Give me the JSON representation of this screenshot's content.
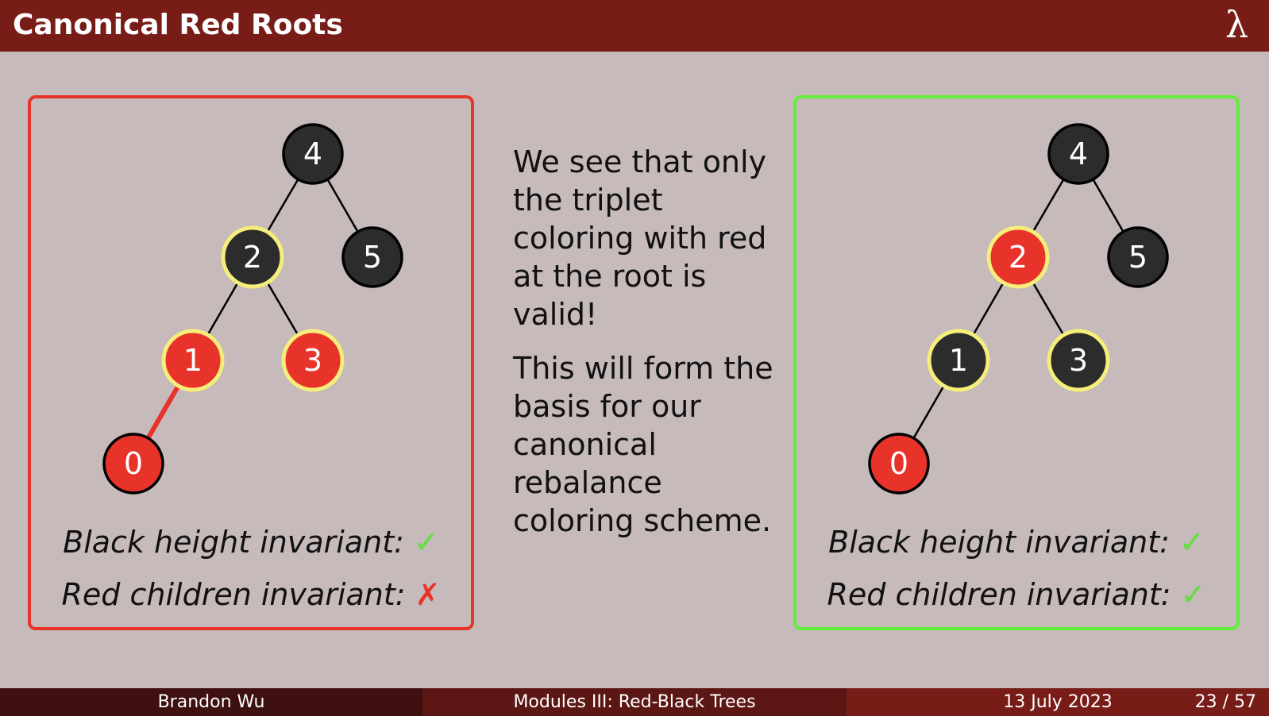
{
  "slide": {
    "title": "Canonical Red Roots",
    "logo": "λ"
  },
  "colors": {
    "header": "#781c18",
    "background": "#c6baba",
    "red_node": "#e8332b",
    "black_node": "#2c2c2c",
    "highlight_ring": "#f6ee7a",
    "invalid_border": "#e8332b",
    "valid_border": "#62ee3a"
  },
  "left_panel": {
    "status": "invalid",
    "nodes": [
      {
        "key": "4",
        "color": "black",
        "highlight": false
      },
      {
        "key": "2",
        "color": "black",
        "highlight": true
      },
      {
        "key": "5",
        "color": "black",
        "highlight": false
      },
      {
        "key": "1",
        "color": "red",
        "highlight": true
      },
      {
        "key": "3",
        "color": "red",
        "highlight": true
      },
      {
        "key": "0",
        "color": "red",
        "highlight": false
      }
    ],
    "edges": [
      {
        "from": "4",
        "to": "2",
        "violation": false
      },
      {
        "from": "4",
        "to": "5",
        "violation": false
      },
      {
        "from": "2",
        "to": "1",
        "violation": false
      },
      {
        "from": "2",
        "to": "3",
        "violation": false
      },
      {
        "from": "1",
        "to": "0",
        "violation": true
      }
    ],
    "invariant1_label": "Black height invariant:",
    "invariant1_mark": "✓",
    "invariant2_label": "Red children invariant:",
    "invariant2_mark": "✗"
  },
  "right_panel": {
    "status": "valid",
    "nodes": [
      {
        "key": "4",
        "color": "black",
        "highlight": false
      },
      {
        "key": "2",
        "color": "red",
        "highlight": true
      },
      {
        "key": "5",
        "color": "black",
        "highlight": false
      },
      {
        "key": "1",
        "color": "black",
        "highlight": true
      },
      {
        "key": "3",
        "color": "black",
        "highlight": true
      },
      {
        "key": "0",
        "color": "red",
        "highlight": false
      }
    ],
    "edges": [
      {
        "from": "4",
        "to": "2",
        "violation": false
      },
      {
        "from": "4",
        "to": "5",
        "violation": false
      },
      {
        "from": "2",
        "to": "1",
        "violation": false
      },
      {
        "from": "2",
        "to": "3",
        "violation": false
      },
      {
        "from": "1",
        "to": "0",
        "violation": false
      }
    ],
    "invariant1_label": "Black height invariant:",
    "invariant1_mark": "✓",
    "invariant2_label": "Red children invariant:",
    "invariant2_mark": "✓"
  },
  "center_text": {
    "paragraph1": "We see that only the triplet coloring with red at the root is valid!",
    "paragraph2": "This will form the basis for our canonical rebalance coloring scheme."
  },
  "footer": {
    "author": "Brandon Wu",
    "course": "Modules III: Red-Black Trees",
    "date": "13 July 2023",
    "page": "23 / 57"
  }
}
